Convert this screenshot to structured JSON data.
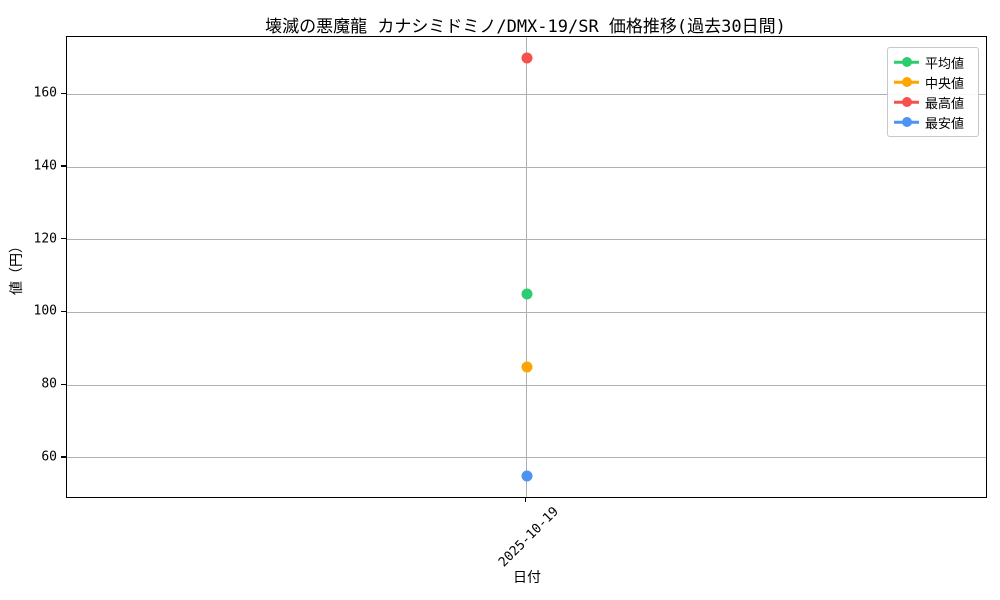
{
  "chart_data": {
    "type": "scatter",
    "title": "壊滅の悪魔龍 カナシミドミノ/DMX-19/SR 価格推移(過去30日間)",
    "xlabel": "日付",
    "ylabel": "値（円）",
    "x": [
      "2025-10-19"
    ],
    "series": [
      {
        "key": "average",
        "name": "平均値",
        "color": "#2ecc71",
        "values": [
          105
        ]
      },
      {
        "key": "median",
        "name": "中央値",
        "color": "#ffa502",
        "values": [
          85
        ]
      },
      {
        "key": "highest",
        "name": "最高値",
        "color": "#f5514d",
        "values": [
          170
        ]
      },
      {
        "key": "lowest",
        "name": "最安値",
        "color": "#4d94f0",
        "values": [
          55
        ]
      }
    ],
    "yticks": [
      60,
      80,
      100,
      120,
      140,
      160
    ],
    "ylim": [
      49.25,
      175.75
    ],
    "grid": true,
    "legend_position": "upper right",
    "colors": {
      "grid": "#b0b0b0",
      "spine": "#000000",
      "legend_border": "#c8c8c8",
      "text": "#000000"
    }
  }
}
